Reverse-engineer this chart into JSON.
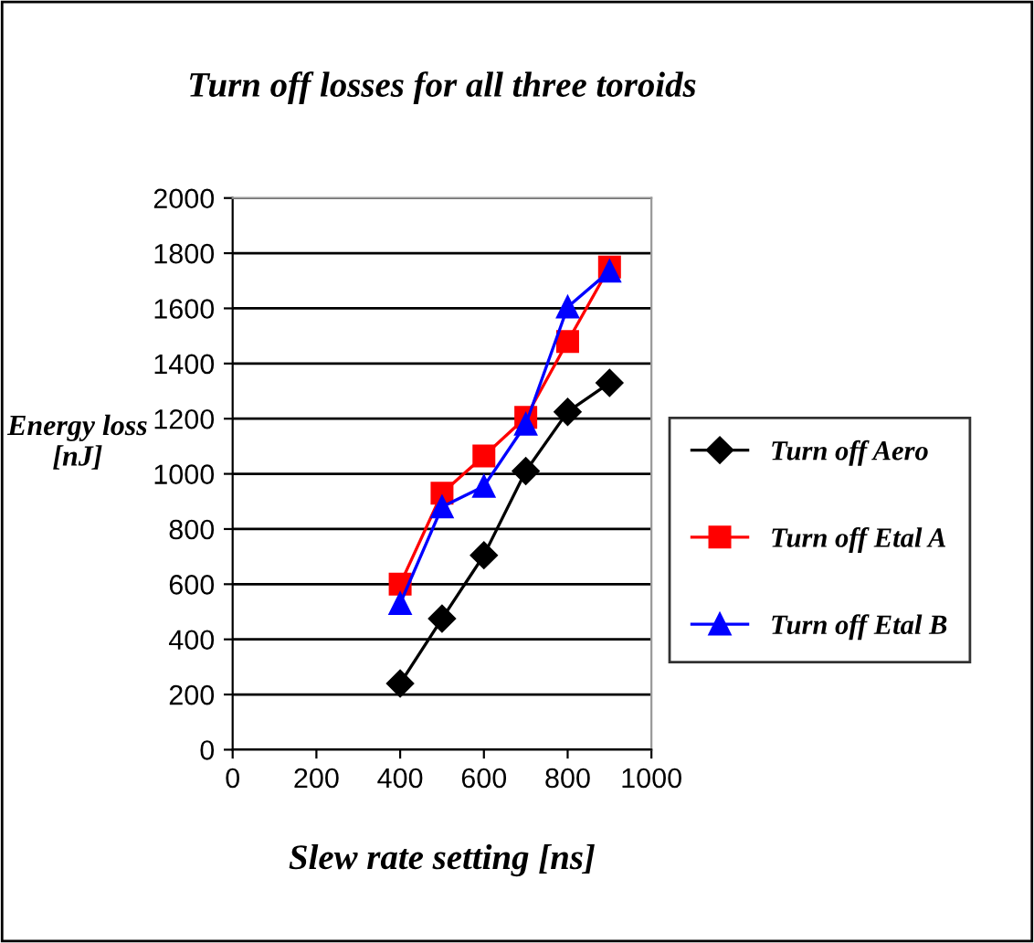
{
  "chart_data": {
    "type": "line",
    "title": "Turn off losses for all three toroids",
    "xlabel": "Slew rate setting [ns]",
    "ylabel": "Energy loss\n[nJ]",
    "x": [
      400,
      500,
      600,
      700,
      800,
      900
    ],
    "series": [
      {
        "name": "Turn off Aero",
        "color": "#000000",
        "marker": "diamond",
        "values": [
          240,
          475,
          705,
          1010,
          1225,
          1330
        ]
      },
      {
        "name": "Turn off Etal A",
        "color": "#ff0000",
        "marker": "square",
        "values": [
          600,
          930,
          1065,
          1205,
          1480,
          1750
        ]
      },
      {
        "name": "Turn off Etal B",
        "color": "#0000ff",
        "marker": "triangle",
        "values": [
          530,
          880,
          955,
          1180,
          1605,
          1735
        ]
      }
    ],
    "xlim": [
      0,
      1000
    ],
    "xticks": [
      0,
      200,
      400,
      600,
      800,
      1000
    ],
    "ylim": [
      0,
      2000
    ],
    "yticks": [
      0,
      200,
      400,
      600,
      800,
      1000,
      1200,
      1400,
      1600,
      1800,
      2000
    ],
    "grid": "y",
    "legend": "right"
  }
}
